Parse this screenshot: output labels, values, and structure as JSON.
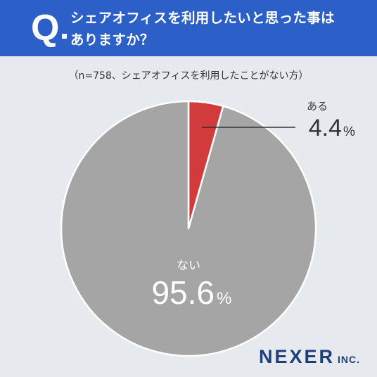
{
  "question": {
    "mark": "Q",
    "line1": "シェアオフィスを利用したいと思った事は",
    "line2": "ありますか？"
  },
  "subtitle": "（n=758、シェアオフィスを利用したことがない方）",
  "chart_data": {
    "type": "pie",
    "slices": [
      {
        "label": "ある",
        "value": 4.4,
        "display": "4.4",
        "unit": "%",
        "color": "#d13b3b"
      },
      {
        "label": "ない",
        "value": 95.6,
        "display": "95.6",
        "unit": "%",
        "color": "#a5a5a5"
      }
    ],
    "start_angle_deg": 0,
    "direction": "clockwise"
  },
  "brand": {
    "name": "NEXER",
    "suffix": "INC."
  },
  "colors": {
    "header": "#2c5fc7",
    "background": "#e6eaee",
    "leader_line": "#333333"
  }
}
